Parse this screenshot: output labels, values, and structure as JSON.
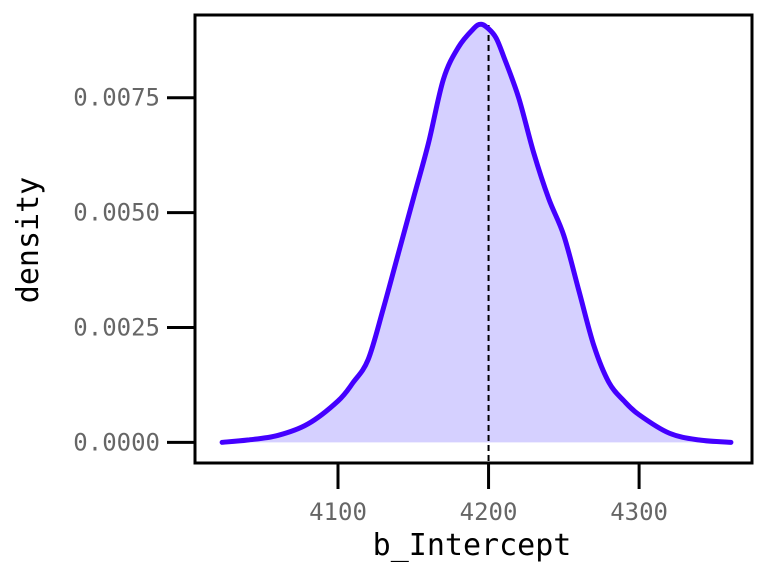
{
  "chart_data": {
    "type": "area",
    "xlabel": "b_Intercept",
    "ylabel": "density",
    "xlim": [
      4005,
      4375
    ],
    "ylim": [
      -0.00045,
      0.0093
    ],
    "x_ticks": [
      {
        "value": 4100,
        "label": "4100"
      },
      {
        "value": 4200,
        "label": "4200"
      },
      {
        "value": 4300,
        "label": "4300"
      }
    ],
    "y_ticks": [
      {
        "value": 0.0,
        "label": "0.0000"
      },
      {
        "value": 0.0025,
        "label": "0.0025"
      },
      {
        "value": 0.005,
        "label": "0.0050"
      },
      {
        "value": 0.0075,
        "label": "0.0075"
      }
    ],
    "x": [
      4023,
      4040,
      4060,
      4080,
      4100,
      4110,
      4120,
      4130,
      4140,
      4150,
      4160,
      4170,
      4180,
      4190,
      4195,
      4200,
      4205,
      4210,
      4220,
      4230,
      4240,
      4250,
      4260,
      4270,
      4280,
      4290,
      4300,
      4320,
      4340,
      4361
    ],
    "values": [
      0.0,
      5e-05,
      0.00015,
      0.0004,
      0.0009,
      0.0013,
      0.0018,
      0.0029,
      0.0041,
      0.0053,
      0.0065,
      0.0079,
      0.0086,
      0.009,
      0.0091,
      0.009,
      0.0088,
      0.0084,
      0.0075,
      0.0063,
      0.0053,
      0.0045,
      0.0033,
      0.0021,
      0.0013,
      0.0009,
      0.0006,
      0.0002,
      5e-05,
      0.0
    ],
    "reference_line": {
      "x": 4200,
      "style": "dashed"
    },
    "line_color": "#4400ff",
    "fill_color": "#d5d0ff",
    "grid": false,
    "legend": false
  }
}
